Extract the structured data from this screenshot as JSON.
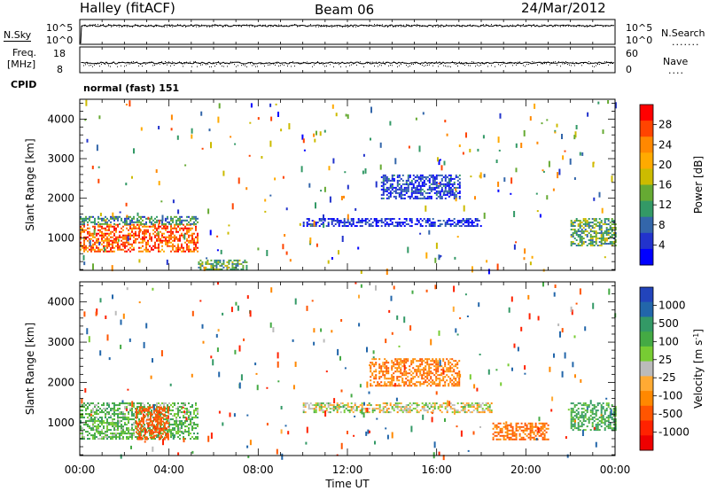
{
  "header": {
    "station": "Halley (fitACF)",
    "beam": "Beam 06",
    "date": "24/Mar/2012"
  },
  "panels": {
    "nsky": {
      "label": "N.Sky",
      "ticks": [
        "10^5",
        "10^0"
      ]
    },
    "nsearch": {
      "label": "N.Search",
      "ticks": [
        "10^5",
        "10^0"
      ]
    },
    "freq": {
      "label_line1": "Freq.",
      "label_line2": "[MHz]",
      "ticks": [
        "18",
        "8"
      ]
    },
    "nave": {
      "label": "Nave",
      "ticks": [
        "60",
        "0"
      ]
    },
    "cpid": {
      "label": "CPID",
      "value": "normal (fast) 151"
    }
  },
  "chart_data": [
    {
      "type": "heatmap",
      "title": "",
      "xlabel": "",
      "ylabel": "Slant Range [km]",
      "x_ticks": [
        "00:00",
        "04:00",
        "08:00",
        "12:00",
        "16:00",
        "20:00",
        "00:00"
      ],
      "xlim_hours": [
        0,
        24
      ],
      "y_ticks": [
        1000,
        2000,
        3000,
        4000
      ],
      "ylim": [
        180,
        4500
      ],
      "colorbar": {
        "label": "Power [dB]",
        "ticks": [
          "28",
          "24",
          "20",
          "16",
          "12",
          "8",
          "4"
        ],
        "colors": [
          "#ff0000",
          "#ff4400",
          "#ff8800",
          "#ffaa00",
          "#ccbb00",
          "#66aa33",
          "#339966",
          "#3366aa",
          "#2233cc",
          "#0000ff"
        ]
      },
      "regions": [
        {
          "name": "morning_strong_echoes",
          "t_start_h": 0.0,
          "t_end_h": 5.3,
          "range_km": [
            650,
            1350
          ],
          "value_db": 26
        },
        {
          "name": "morning_edge_echoes",
          "t_start_h": 0.0,
          "t_end_h": 5.3,
          "range_km": [
            1350,
            1550
          ],
          "value_db": 12
        },
        {
          "name": "ground_scatter_after_0530",
          "t_start_h": 5.3,
          "t_end_h": 7.5,
          "range_km": [
            200,
            450
          ],
          "value_db": 14
        },
        {
          "name": "band_1400km",
          "t_start_h": 10.0,
          "t_end_h": 18.0,
          "range_km": [
            1300,
            1500
          ],
          "value_db": 6
        },
        {
          "name": "upper_band_2300km",
          "t_start_h": 13.5,
          "t_end_h": 17.0,
          "range_km": [
            2000,
            2600
          ],
          "value_db": 7
        },
        {
          "name": "evening_echoes",
          "t_start_h": 22.0,
          "t_end_h": 24.0,
          "range_km": [
            800,
            1500
          ],
          "value_db": 14
        }
      ]
    },
    {
      "type": "heatmap",
      "title": "",
      "xlabel": "Time UT",
      "ylabel": "Slant Range [km]",
      "x_ticks": [
        "00:00",
        "04:00",
        "08:00",
        "12:00",
        "16:00",
        "20:00",
        "00:00"
      ],
      "xlim_hours": [
        0,
        24
      ],
      "y_ticks": [
        1000,
        2000,
        3000,
        4000
      ],
      "ylim": [
        180,
        4500
      ],
      "colorbar": {
        "label": "Velocity [m s",
        "label_sup": "-1",
        "label_end": "]",
        "ticks": [
          "1000",
          "500",
          "100",
          "25",
          "-25",
          "-100",
          "-500",
          "-1000"
        ],
        "colors": [
          "#2244bb",
          "#2266aa",
          "#339966",
          "#44aa44",
          "#77cc33",
          "#bbbbbb",
          "#ffaa33",
          "#ff8800",
          "#ff5500",
          "#ff2200",
          "#ee0000"
        ]
      },
      "regions": [
        {
          "name": "morning_mixed_velocity",
          "t_start_h": 0.0,
          "t_end_h": 5.3,
          "range_km": [
            600,
            1500
          ],
          "value_ms": 100
        },
        {
          "name": "morning_negative",
          "t_start_h": 2.5,
          "t_end_h": 4.0,
          "range_km": [
            600,
            1400
          ],
          "value_ms": -300
        },
        {
          "name": "ground_scatter_band",
          "t_start_h": 10.0,
          "t_end_h": 18.5,
          "range_km": [
            1250,
            1500
          ],
          "value_ms": 0
        },
        {
          "name": "upper_negative_band",
          "t_start_h": 13.0,
          "t_end_h": 17.0,
          "range_km": [
            1900,
            2600
          ],
          "value_ms": -150
        },
        {
          "name": "evening_negative",
          "t_start_h": 18.5,
          "t_end_h": 21.0,
          "range_km": [
            600,
            1000
          ],
          "value_ms": -200
        },
        {
          "name": "evening_positive",
          "t_start_h": 22.0,
          "t_end_h": 24.0,
          "range_km": [
            800,
            1500
          ],
          "value_ms": 150
        }
      ]
    }
  ]
}
